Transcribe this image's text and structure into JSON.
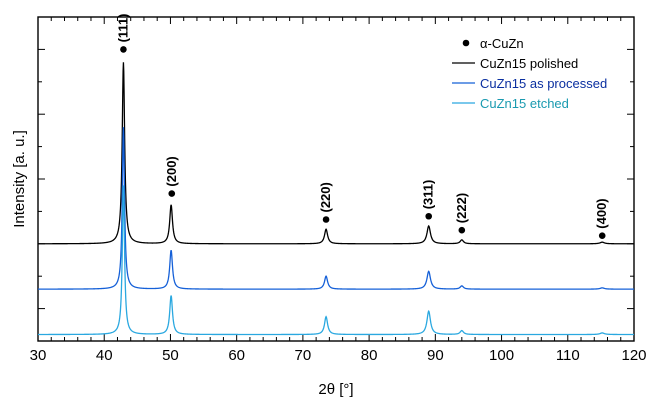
{
  "chart_data": {
    "type": "line",
    "title": "",
    "xlabel": "2θ [°]",
    "ylabel": "Intensity [a. u.]",
    "xlim": [
      30,
      120
    ],
    "x_ticks": [
      30,
      40,
      50,
      60,
      70,
      80,
      90,
      100,
      110,
      120
    ],
    "y_ticks_labeled": false,
    "series": [
      {
        "name": "CuZn15 polished",
        "color": "#000000",
        "baseline": 3.0,
        "peaks": [
          {
            "x": 42.9,
            "height": 5.6,
            "width": 0.22
          },
          {
            "x": 50.1,
            "height": 1.2,
            "width": 0.25
          },
          {
            "x": 73.5,
            "height": 0.45,
            "width": 0.28
          },
          {
            "x": 89.0,
            "height": 0.55,
            "width": 0.32
          },
          {
            "x": 94.0,
            "height": 0.12,
            "width": 0.3
          },
          {
            "x": 115.2,
            "height": 0.05,
            "width": 0.4
          }
        ]
      },
      {
        "name": "CuZn15 as processed",
        "color": "#1560d8",
        "baseline": 1.6,
        "peaks": [
          {
            "x": 42.9,
            "height": 5.0,
            "width": 0.2
          },
          {
            "x": 50.1,
            "height": 1.2,
            "width": 0.25
          },
          {
            "x": 73.5,
            "height": 0.4,
            "width": 0.28
          },
          {
            "x": 89.0,
            "height": 0.55,
            "width": 0.32
          },
          {
            "x": 94.0,
            "height": 0.1,
            "width": 0.3
          },
          {
            "x": 115.2,
            "height": 0.04,
            "width": 0.4
          }
        ]
      },
      {
        "name": "CuZn15 etched",
        "color": "#2aa8e0",
        "baseline": 0.2,
        "peaks": [
          {
            "x": 42.9,
            "height": 4.6,
            "width": 0.2
          },
          {
            "x": 50.1,
            "height": 1.2,
            "width": 0.25
          },
          {
            "x": 73.5,
            "height": 0.55,
            "width": 0.28
          },
          {
            "x": 89.0,
            "height": 0.72,
            "width": 0.32
          },
          {
            "x": 94.0,
            "height": 0.12,
            "width": 0.3
          },
          {
            "x": 115.2,
            "height": 0.05,
            "width": 0.4
          }
        ]
      }
    ],
    "phase_markers": {
      "name": "α-CuZn",
      "color": "#000000",
      "markers": [
        {
          "x": 42.9,
          "y": 9.0,
          "label": "(111)"
        },
        {
          "x": 50.2,
          "y": 4.55,
          "label": "(200)"
        },
        {
          "x": 73.5,
          "y": 3.75,
          "label": "(220)"
        },
        {
          "x": 89.0,
          "y": 3.85,
          "label": "(311)"
        },
        {
          "x": 94.0,
          "y": 3.42,
          "label": "(222)"
        },
        {
          "x": 115.2,
          "y": 3.25,
          "label": "(400)"
        }
      ]
    },
    "legend": {
      "position": "top-right",
      "entries": [
        {
          "label": "α-CuZn",
          "symbol": "dot",
          "color": "#000000",
          "text_color": "#000000"
        },
        {
          "label": "CuZn15 polished",
          "symbol": "line",
          "color": "#000000",
          "text_color": "#000000"
        },
        {
          "label": "CuZn15 as processed",
          "symbol": "line",
          "color": "#1560d8",
          "text_color": "#0a2fa0"
        },
        {
          "label": "CuZn15 etched",
          "symbol": "line",
          "color": "#2aa8e0",
          "text_color": "#1a9ab0"
        }
      ]
    }
  }
}
